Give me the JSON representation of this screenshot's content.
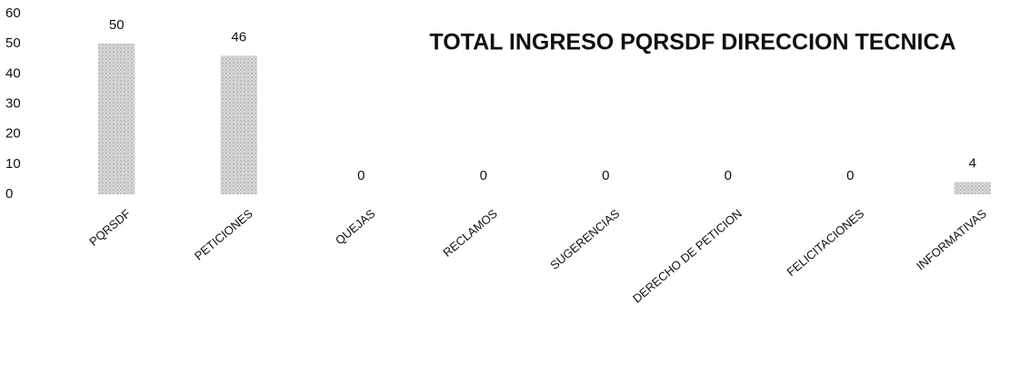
{
  "chart_data": {
    "type": "bar",
    "title": "TOTAL INGRESO PQRSDF  DIRECCION TECNICA",
    "categories": [
      "PQRSDF",
      "PETICIONES",
      "QUEJAS",
      "RECLAMOS",
      "SUGERENCIAS",
      "DERECHO DE PETICION",
      "FELICITACIONES",
      "INFORMATIVAS"
    ],
    "values": [
      50,
      46,
      0,
      0,
      0,
      0,
      0,
      4
    ],
    "color": "#c4c4c4",
    "ylim": [
      0,
      60
    ],
    "yticks": [
      0,
      10,
      20,
      30,
      40,
      50,
      60
    ],
    "grid": false
  }
}
